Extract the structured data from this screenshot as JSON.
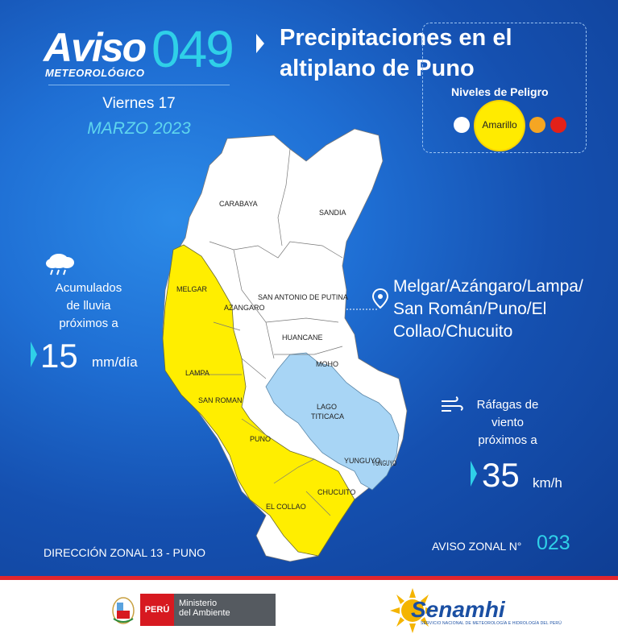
{
  "header": {
    "aviso_word": "Aviso",
    "aviso_subtitle": "METEOROLÓGICO",
    "aviso_number": "049",
    "title_line1": "Precipitaciones en el",
    "title_line2": "altiplano de Puno",
    "day": "Viernes 17",
    "date": "MARZO 2023"
  },
  "danger_levels": {
    "title": "Niveles de Peligro",
    "active_label": "Amarillo",
    "colors": [
      "#ffffff",
      "#ffeb00",
      "#f5a623",
      "#e32119"
    ]
  },
  "rain": {
    "icon": "rain-cloud-icon",
    "line1": "Acumulados",
    "line2": "de lluvia",
    "line3": "próximos a",
    "value": "15",
    "unit": "mm/día"
  },
  "affected": {
    "icon": "location-pin-icon",
    "line1": "Melgar/Azángaro/Lampa/",
    "line2": "San Román/Puno/El",
    "line3": "Collao/Chucuito"
  },
  "wind": {
    "icon": "wind-icon",
    "line1": "Ráfagas de",
    "line2": "viento",
    "line3": "próximos a",
    "value": "35",
    "unit": "km/h"
  },
  "map": {
    "labels": {
      "carabaya": "CARABAYA",
      "sandia": "SANDIA",
      "melgar": "MELGAR",
      "azangaro": "AZANGARO",
      "san_antonio": "SAN ANTONIO DE PUTINA",
      "huancane": "HUANCANE",
      "moho": "MOHO",
      "lampa": "LAMPA",
      "san_roman": "SAN ROMAN",
      "lago": "LAGO",
      "titicaca": "TITICACA",
      "puno": "PUNO",
      "yunguyo": "YUNGUYO",
      "yunguyo_cut": "YUNGUYO",
      "chucuito": "CHUCUITO",
      "el_collao": "EL COLLAO"
    },
    "colors": {
      "warning": "#ffee00",
      "lake": "#a8d5f5",
      "land": "#ffffff"
    }
  },
  "footer": {
    "direccion": "DIRECCIÓN ZONAL 13 - PUNO",
    "aviso_zonal_label": "AVISO ZONAL N°",
    "aviso_zonal_number": "023"
  },
  "logos": {
    "peru_label": "PERÚ",
    "ministerio_line1": "Ministerio",
    "ministerio_line2": "del Ambiente",
    "senamhi": "Senamhi",
    "senamhi_sub": "SERVICIO NACIONAL DE METEOROLOGÍA E HIDROLOGÍA DEL PERÚ"
  }
}
